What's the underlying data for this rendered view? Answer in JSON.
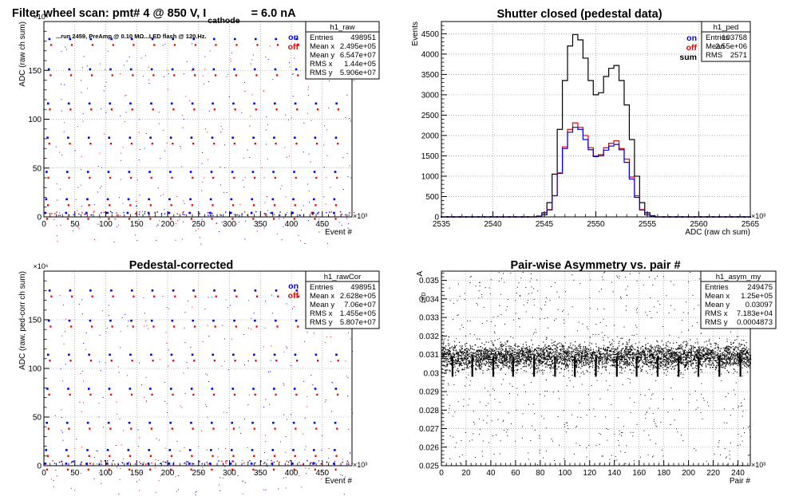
{
  "colors": {
    "on": "#0000ee",
    "off": "#ee0000",
    "sum": "#000000",
    "frame": "#000000",
    "grid": "#888888"
  },
  "chart_data": [
    {
      "id": "raw",
      "type": "scatter",
      "title": "Filter wheel scan: pmt#   4 @   850 V, I",
      "title_sub": "cathode",
      "title_tail": "= 6.0 nA",
      "annotation": "...run 2459, PreAmp @ 0.10 MΩ...LED flash @  120.Hz.",
      "xlabel": "Event #",
      "ylabel": "ADC (raw ch sum)",
      "x_exponent": "×10³",
      "y_exponent": "×10⁶",
      "xlim": [
        0,
        498
      ],
      "ylim": [
        0,
        200
      ],
      "x_ticks": [
        0,
        50,
        100,
        150,
        200,
        250,
        300,
        350,
        400,
        450
      ],
      "y_ticks": [
        0,
        50,
        100,
        150
      ],
      "grid": true,
      "legend": [
        "on",
        "off"
      ],
      "stats": {
        "name": "h1_raw",
        "rows": [
          [
            "Entries",
            "498951"
          ],
          [
            "Mean x",
            "2.495e+05"
          ],
          [
            "Mean y",
            "6.547e+07"
          ],
          [
            "RMS x",
            "1.44e+05"
          ],
          [
            "RMS y",
            "5.906e+07"
          ]
        ]
      },
      "pattern": {
        "period_x": 33.3,
        "levels_y": [
          4,
          18,
          46,
          81,
          116,
          151,
          182
        ]
      }
    },
    {
      "id": "ped",
      "type": "line",
      "title": "Shutter closed (pedestal data)",
      "xlabel": "ADC (raw ch sum)",
      "ylabel": "Events",
      "x_exponent": "×10³",
      "xlim": [
        2535,
        2565
      ],
      "ylim": [
        0,
        4800
      ],
      "x_ticks": [
        2535,
        2540,
        2545,
        2550,
        2555,
        2560,
        2565
      ],
      "y_ticks": [
        0,
        500,
        1000,
        1500,
        2000,
        2500,
        3000,
        3500,
        4000,
        4500
      ],
      "grid": true,
      "legend": [
        "on",
        "off",
        "sum"
      ],
      "stats": {
        "name": "h1_ped",
        "rows": [
          [
            "Entries",
            "103758"
          ],
          [
            "Mean",
            "2.55e+06"
          ],
          [
            "RMS",
            "2571"
          ]
        ]
      },
      "x": [
        2544.5,
        2545.0,
        2545.5,
        2546.0,
        2546.5,
        2547.0,
        2547.5,
        2548.0,
        2548.5,
        2549.0,
        2549.5,
        2550.0,
        2550.5,
        2551.0,
        2551.5,
        2552.0,
        2552.5,
        2553.0,
        2553.5,
        2554.0,
        2554.5,
        2555.0,
        2555.5
      ],
      "series": [
        {
          "name": "sum",
          "values": [
            20,
            100,
            350,
            1050,
            2150,
            3350,
            4200,
            4480,
            4350,
            3900,
            3350,
            3000,
            3050,
            3450,
            3650,
            3720,
            3350,
            2750,
            1900,
            1000,
            350,
            100,
            30
          ]
        },
        {
          "name": "off",
          "values": [
            10,
            50,
            180,
            520,
            1080,
            1720,
            2150,
            2310,
            2200,
            2000,
            1700,
            1500,
            1530,
            1700,
            1810,
            1870,
            1680,
            1420,
            980,
            520,
            180,
            50,
            15
          ]
        },
        {
          "name": "on",
          "values": [
            10,
            50,
            170,
            520,
            1070,
            1680,
            2080,
            2200,
            2150,
            1900,
            1650,
            1480,
            1500,
            1640,
            1740,
            1780,
            1650,
            1340,
            930,
            480,
            170,
            50,
            15
          ]
        }
      ]
    },
    {
      "id": "rawcor",
      "type": "scatter",
      "title": "Pedestal-corrected",
      "xlabel": "Event #",
      "ylabel": "ADC (raw, ped-corr ch sum)",
      "x_exponent": "×10³",
      "y_exponent": "×10⁶",
      "xlim": [
        0,
        498
      ],
      "ylim": [
        0,
        200
      ],
      "x_ticks": [
        0,
        50,
        100,
        150,
        200,
        250,
        300,
        350,
        400,
        450
      ],
      "y_ticks": [
        0,
        50,
        100,
        150
      ],
      "grid": true,
      "legend": [
        "on",
        "off"
      ],
      "stats": {
        "name": "h1_rawCor",
        "rows": [
          [
            "Entries",
            "498951"
          ],
          [
            "Mean x",
            "2.628e+05"
          ],
          [
            "Mean y",
            "7.06e+07"
          ],
          [
            "RMS x",
            "1.455e+05"
          ],
          [
            "RMS y",
            "5.807e+07"
          ]
        ]
      },
      "pattern": {
        "period_x": 33.3,
        "levels_y": [
          2,
          16,
          44,
          79,
          114,
          149,
          180
        ]
      }
    },
    {
      "id": "asym",
      "type": "scatter",
      "title": "Pair-wise Asymmetry vs. pair #",
      "xlabel": "Pair #",
      "ylabel": "A",
      "ylabel_sub": "LED",
      "x_exponent": "×10³",
      "xlim": [
        0,
        250
      ],
      "ylim": [
        0.025,
        0.0355
      ],
      "x_ticks": [
        0,
        20,
        40,
        60,
        80,
        100,
        120,
        140,
        160,
        180,
        200,
        220,
        240
      ],
      "y_ticks": [
        0.025,
        0.026,
        0.027,
        0.028,
        0.029,
        0.03,
        0.031,
        0.032,
        0.033,
        0.034,
        0.035
      ],
      "y_tick_labels": [
        "0.025",
        "0.026",
        "0.027",
        "0.028",
        "0.029",
        "0.03",
        "0.031",
        "0.032",
        "0.033",
        "0.034",
        "0.035"
      ],
      "grid": true,
      "stats": {
        "name": "h1_asym_my",
        "rows": [
          [
            "Entries",
            "249475"
          ],
          [
            "Mean x",
            "1.25e+05"
          ],
          [
            "Mean y",
            "0.03097"
          ],
          [
            "RMS x",
            "7.183e+04"
          ],
          [
            "RMS y",
            "0.0004873"
          ]
        ]
      },
      "band": {
        "center": 0.0309,
        "halfwidth": 0.0006
      },
      "dips_x": [
        9,
        25,
        42,
        58,
        75,
        92,
        108,
        125,
        142,
        158,
        175,
        192,
        208,
        225,
        242
      ],
      "dip_min": 0.0298
    }
  ]
}
